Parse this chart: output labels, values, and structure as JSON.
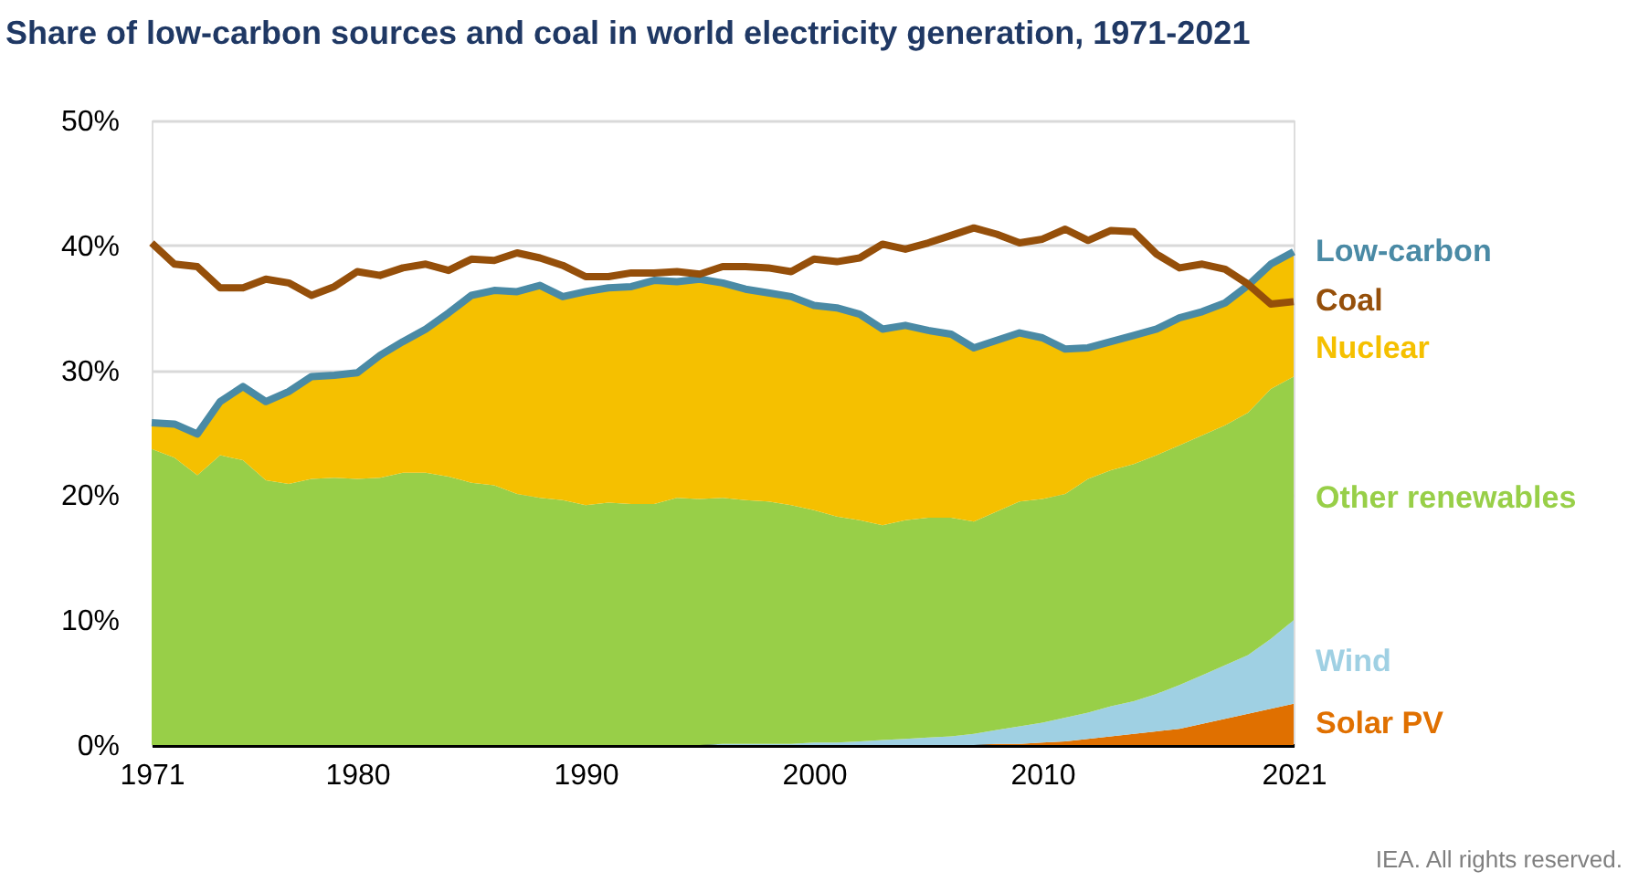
{
  "chart_data": {
    "type": "area",
    "title": "Share of low-carbon sources and coal in world electricity generation, 1971-2021",
    "x": [
      1971,
      1972,
      1973,
      1974,
      1975,
      1976,
      1977,
      1978,
      1979,
      1980,
      1981,
      1982,
      1983,
      1984,
      1985,
      1986,
      1987,
      1988,
      1989,
      1990,
      1991,
      1992,
      1993,
      1994,
      1995,
      1996,
      1997,
      1998,
      1999,
      2000,
      2001,
      2002,
      2003,
      2004,
      2005,
      2006,
      2007,
      2008,
      2009,
      2010,
      2011,
      2012,
      2013,
      2014,
      2015,
      2016,
      2017,
      2018,
      2019,
      2020,
      2021
    ],
    "stacked": true,
    "series": [
      {
        "name": "Solar PV",
        "type": "area",
        "color": "#e07000",
        "values": [
          0,
          0,
          0,
          0,
          0,
          0,
          0,
          0,
          0,
          0,
          0,
          0,
          0,
          0,
          0,
          0,
          0,
          0,
          0,
          0,
          0,
          0,
          0,
          0,
          0,
          0,
          0,
          0,
          0,
          0,
          0,
          0,
          0,
          0,
          0,
          0,
          0,
          0.1,
          0.1,
          0.2,
          0.3,
          0.5,
          0.7,
          0.9,
          1.1,
          1.3,
          1.7,
          2.1,
          2.5,
          2.9,
          3.3
        ]
      },
      {
        "name": "Wind",
        "type": "area",
        "color": "#9fd0e3",
        "values": [
          0,
          0,
          0,
          0,
          0,
          0,
          0,
          0,
          0,
          0,
          0,
          0,
          0,
          0,
          0,
          0,
          0,
          0,
          0,
          0,
          0,
          0,
          0,
          0,
          0,
          0.1,
          0.1,
          0.1,
          0.1,
          0.2,
          0.2,
          0.3,
          0.4,
          0.5,
          0.6,
          0.7,
          0.9,
          1.1,
          1.4,
          1.6,
          1.9,
          2.1,
          2.4,
          2.6,
          3.0,
          3.5,
          3.9,
          4.3,
          4.7,
          5.6,
          6.7
        ]
      },
      {
        "name": "Other renewables",
        "type": "area",
        "color": "#98cf48",
        "values": [
          23.7,
          23.0,
          21.6,
          23.2,
          22.8,
          21.2,
          20.9,
          21.3,
          21.4,
          21.3,
          21.4,
          21.8,
          21.8,
          21.5,
          21.0,
          20.8,
          20.1,
          19.8,
          19.6,
          19.2,
          19.4,
          19.3,
          19.3,
          19.8,
          19.7,
          19.7,
          19.5,
          19.4,
          19.1,
          18.6,
          18.1,
          17.7,
          17.2,
          17.5,
          17.6,
          17.5,
          17.0,
          17.5,
          18.0,
          17.9,
          17.9,
          18.7,
          18.9,
          19.0,
          19.1,
          19.2,
          19.2,
          19.2,
          19.4,
          20.0,
          19.5
        ]
      },
      {
        "name": "Nuclear",
        "type": "area",
        "color": "#f5c000",
        "values": [
          2.1,
          2.7,
          3.3,
          4.3,
          5.9,
          6.3,
          7.4,
          8.2,
          8.2,
          8.5,
          9.8,
          10.5,
          11.5,
          13.1,
          15.0,
          15.6,
          16.2,
          17.0,
          16.3,
          17.1,
          17.2,
          17.4,
          17.9,
          17.3,
          17.6,
          17.2,
          16.9,
          16.7,
          16.7,
          16.4,
          16.7,
          16.5,
          15.7,
          15.6,
          15.0,
          14.7,
          13.9,
          13.7,
          13.5,
          12.9,
          11.6,
          10.5,
          10.3,
          10.3,
          10.1,
          10.2,
          9.9,
          9.8,
          10.2,
          10.0,
          10.0
        ]
      },
      {
        "name": "Low-carbon",
        "type": "line",
        "color": "#4a8aa5",
        "values": [
          25.8,
          25.7,
          24.9,
          27.5,
          28.7,
          27.5,
          28.3,
          29.5,
          29.6,
          29.8,
          31.2,
          32.3,
          33.3,
          34.6,
          36.0,
          36.4,
          36.3,
          36.8,
          35.9,
          36.3,
          36.6,
          36.7,
          37.2,
          37.1,
          37.3,
          37.0,
          36.5,
          36.2,
          35.9,
          35.2,
          35.0,
          34.5,
          33.3,
          33.6,
          33.2,
          32.9,
          31.8,
          32.4,
          33.0,
          32.6,
          31.7,
          31.8,
          32.3,
          32.8,
          33.3,
          34.2,
          34.7,
          35.4,
          36.8,
          38.5,
          39.5
        ]
      },
      {
        "name": "Coal",
        "type": "line",
        "color": "#954f0a",
        "values": [
          40.2,
          38.5,
          38.3,
          36.6,
          36.6,
          37.3,
          37.0,
          36.0,
          36.7,
          37.9,
          37.6,
          38.2,
          38.5,
          38.0,
          38.9,
          38.8,
          39.4,
          39.0,
          38.4,
          37.5,
          37.5,
          37.8,
          37.8,
          37.9,
          37.7,
          38.3,
          38.3,
          38.2,
          37.9,
          38.9,
          38.7,
          39.0,
          40.1,
          39.7,
          40.2,
          40.8,
          41.4,
          40.9,
          40.2,
          40.5,
          41.3,
          40.4,
          41.2,
          41.1,
          39.3,
          38.2,
          38.5,
          38.1,
          36.9,
          35.3,
          35.5
        ]
      }
    ],
    "xlim": [
      1971,
      2021
    ],
    "xticks": [
      1971,
      1980,
      1990,
      2000,
      2010,
      2021
    ],
    "ylim": [
      0,
      50
    ],
    "yticks": [
      {
        "value": 0,
        "label": "0%"
      },
      {
        "value": 10,
        "label": "10%"
      },
      {
        "value": 20,
        "label": "20%"
      },
      {
        "value": 30,
        "label": "30%"
      },
      {
        "value": 40,
        "label": "40%"
      },
      {
        "value": 50,
        "label": "50%"
      }
    ],
    "grid": "y",
    "line_style": "solid",
    "annotations": [
      "IEA. All rights reserved."
    ]
  }
}
